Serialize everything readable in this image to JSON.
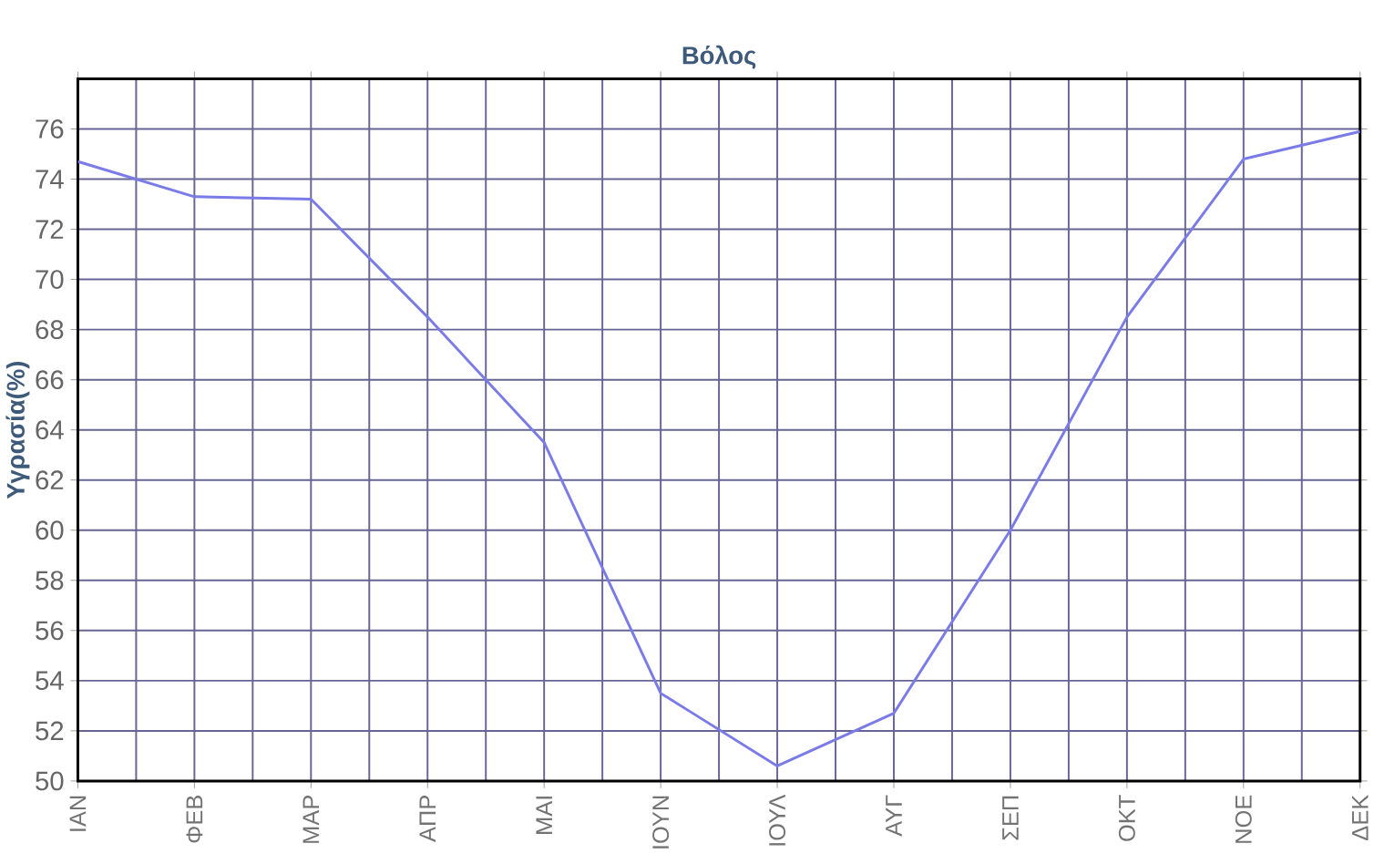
{
  "chart_data": {
    "type": "line",
    "title": "Βόλος",
    "ylabel": "Υγρασία(%)",
    "categories": [
      "ΙΑΝ",
      "ΦΕΒ",
      "ΜΑΡ",
      "ΑΠΡ",
      "ΜΑΙ",
      "ΙΟΥΝ",
      "ΙΟΥΛ",
      "ΑΥΓ",
      "ΣΕΠ",
      "ΟΚΤ",
      "ΝΟΕ",
      "ΔΕΚ"
    ],
    "series": [
      {
        "color": "#7b7be8",
        "values": [
          74.7,
          73.3,
          73.2,
          68.5,
          63.5,
          53.5,
          50.6,
          52.7,
          60,
          68.5,
          74.8,
          75.9
        ]
      }
    ],
    "ylim": [
      50,
      78
    ],
    "yticks": [
      50,
      52,
      54,
      56,
      58,
      60,
      62,
      64,
      66,
      68,
      70,
      72,
      74,
      76
    ],
    "grid": true,
    "marker": "none",
    "line_style": "solid"
  }
}
